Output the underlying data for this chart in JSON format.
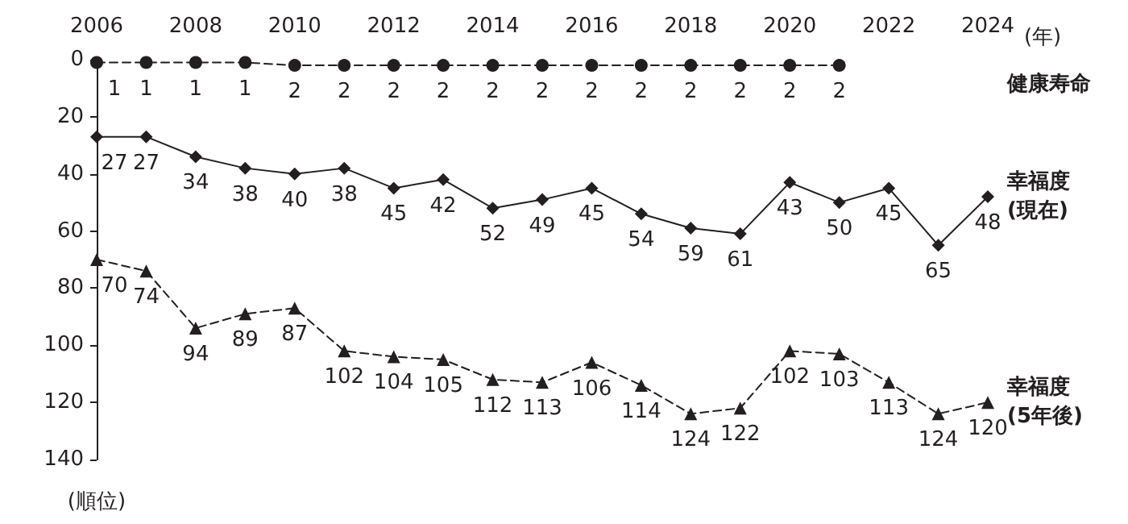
{
  "chart_data": {
    "type": "line",
    "x": [
      2006,
      2007,
      2008,
      2009,
      2010,
      2011,
      2012,
      2013,
      2014,
      2015,
      2016,
      2017,
      2018,
      2019,
      2020,
      2021,
      2022,
      2023,
      2024
    ],
    "xlabel": "(年)",
    "ylabel": "(順位)",
    "xlim": [
      2006,
      2024
    ],
    "xticks": [
      2006,
      2008,
      2010,
      2012,
      2014,
      2016,
      2018,
      2020,
      2022,
      2024
    ],
    "ylim": [
      140,
      0
    ],
    "yticks": [
      0,
      20,
      40,
      60,
      80,
      100,
      120,
      140
    ],
    "series": [
      {
        "name": "健康寿命",
        "color": "#231f20",
        "marker": "circle",
        "line_style": "dashed",
        "values": [
          1,
          1,
          1,
          1,
          2,
          2,
          2,
          2,
          2,
          2,
          2,
          2,
          2,
          2,
          2,
          2,
          null,
          null,
          null
        ]
      },
      {
        "name": "幸福度\n(現在)",
        "color": "#231f20",
        "marker": "diamond",
        "line_style": "solid",
        "values": [
          27,
          27,
          34,
          38,
          40,
          38,
          45,
          42,
          52,
          49,
          45,
          54,
          59,
          61,
          43,
          50,
          45,
          65,
          48
        ]
      },
      {
        "name": "幸福度\n(5年後)",
        "color": "#231f20",
        "marker": "triangle",
        "line_style": "dashed",
        "values": [
          70,
          74,
          94,
          89,
          87,
          102,
          104,
          105,
          112,
          113,
          106,
          114,
          124,
          122,
          102,
          103,
          113,
          124,
          120
        ]
      }
    ],
    "data_labels": true,
    "grid": false,
    "legend": false
  }
}
